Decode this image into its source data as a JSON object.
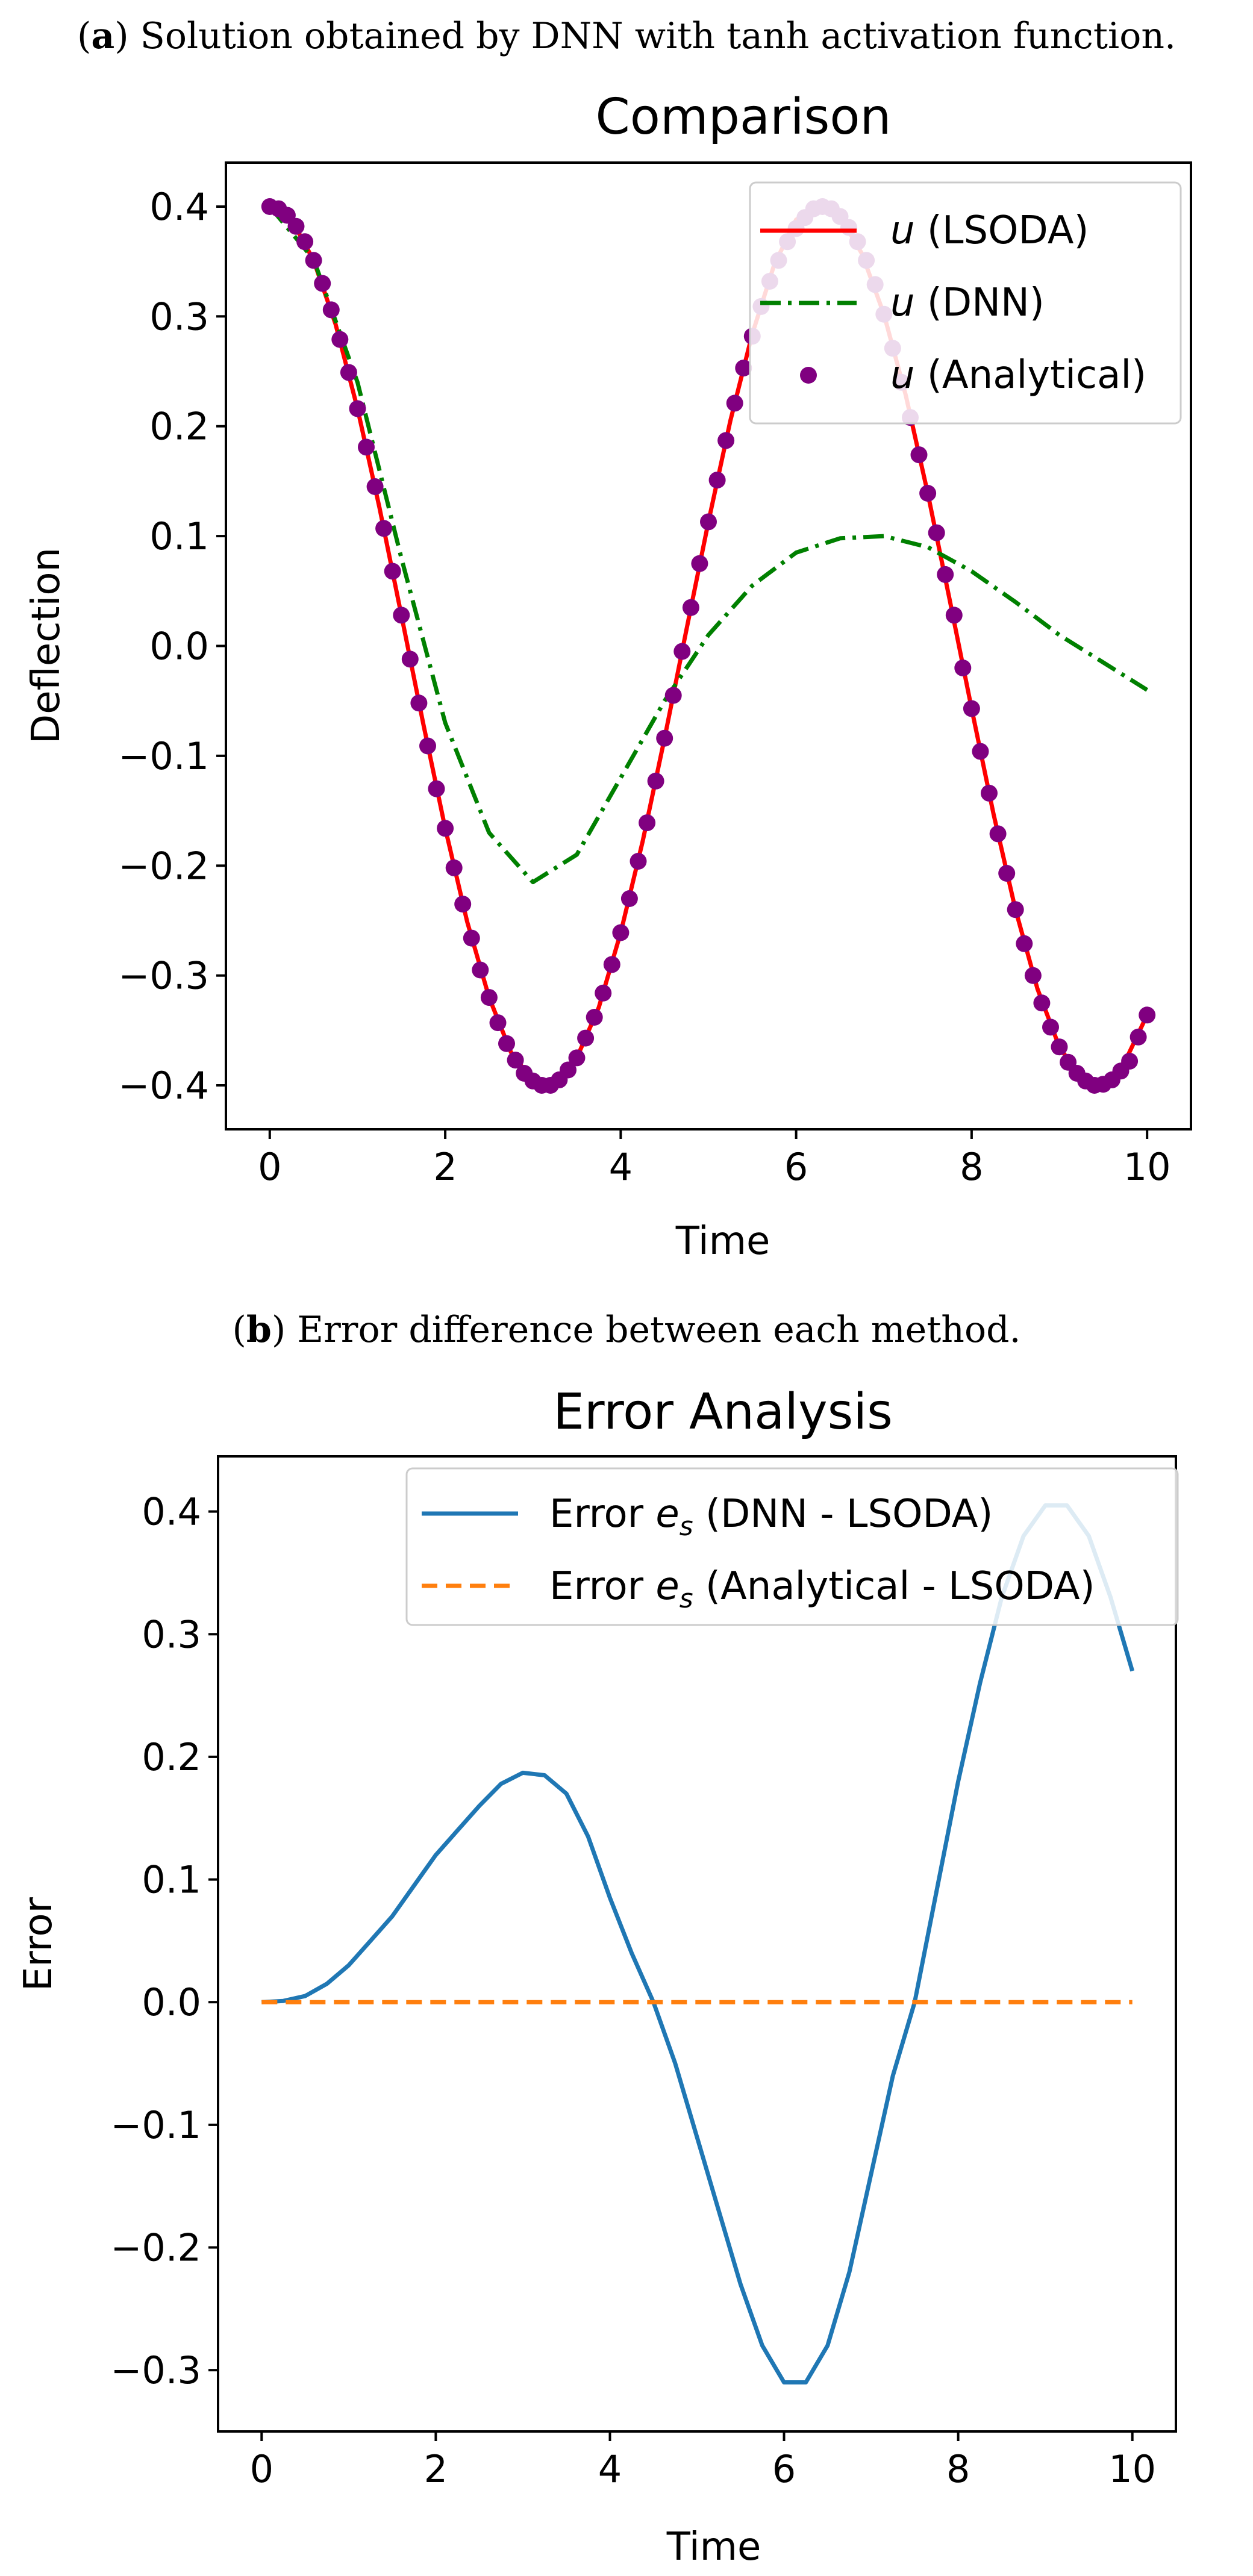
{
  "panels": [
    {
      "caption_label": "a",
      "caption_rest": ") Solution obtained by DNN with tanh activation function.",
      "chart_data": {
        "type": "line",
        "title": "Comparison",
        "xlabel": "Time",
        "ylabel": "Deflection",
        "xlim": [
          -0.5,
          10.5
        ],
        "ylim": [
          -0.44,
          0.44
        ],
        "xticks": [
          0,
          2,
          4,
          6,
          8,
          10
        ],
        "yticks": [
          -0.4,
          -0.3,
          -0.2,
          -0.1,
          0.0,
          0.1,
          0.2,
          0.3,
          0.4
        ],
        "ytick_labels": [
          "−0.4",
          "−0.3",
          "−0.2",
          "−0.1",
          "0.0",
          "0.1",
          "0.2",
          "0.3",
          "0.4"
        ],
        "legend_position": "upper-right",
        "grid": false,
        "series": [
          {
            "name": "u (LSODA)",
            "symbol": "u",
            "label_rest": " (LSODA)",
            "color": "#ff0000",
            "style": "solid",
            "x": [
              0,
              0.25,
              0.5,
              0.75,
              1,
              1.25,
              1.5,
              1.75,
              2,
              2.25,
              2.5,
              2.75,
              3,
              3.25,
              3.5,
              3.75,
              4,
              4.25,
              4.5,
              4.75,
              5,
              5.25,
              5.5,
              5.75,
              6,
              6.25,
              6.5,
              6.75,
              7,
              7.25,
              7.5,
              7.75,
              8,
              8.25,
              8.5,
              8.75,
              9,
              9.25,
              9.5,
              9.75,
              10
            ],
            "y": [
              0.4,
              0.388,
              0.351,
              0.293,
              0.216,
              0.126,
              0.028,
              -0.071,
              -0.166,
              -0.251,
              -0.32,
              -0.37,
              -0.396,
              -0.398,
              -0.375,
              -0.329,
              -0.261,
              -0.178,
              -0.084,
              0.015,
              0.113,
              0.205,
              0.284,
              0.347,
              0.388,
              0.4,
              0.391,
              0.357,
              0.302,
              0.228,
              0.139,
              0.042,
              -0.057,
              -0.153,
              -0.24,
              -0.312,
              -0.365,
              -0.394,
              -0.399,
              -0.378,
              -0.336
            ]
          },
          {
            "name": "u (DNN)",
            "symbol": "u",
            "label_rest": " (DNN)",
            "color": "#008000",
            "style": "dashdot",
            "x": [
              0,
              0.5,
              1,
              1.5,
              2,
              2.5,
              3,
              3.5,
              4,
              4.5,
              5,
              5.5,
              6,
              6.5,
              7,
              7.5,
              8,
              8.5,
              9,
              9.5,
              10
            ],
            "y": [
              0.4,
              0.352,
              0.24,
              0.08,
              -0.07,
              -0.17,
              -0.215,
              -0.19,
              -0.12,
              -0.05,
              0.01,
              0.055,
              0.085,
              0.098,
              0.1,
              0.09,
              0.068,
              0.04,
              0.01,
              -0.015,
              -0.04
            ]
          },
          {
            "name": "u (Analytical)",
            "symbol": "u",
            "label_rest": " (Analytical)",
            "color": "#800080",
            "style": "markers",
            "x": [
              0,
              0.1,
              0.2,
              0.3,
              0.4,
              0.5,
              0.6,
              0.7,
              0.8,
              0.9,
              1,
              1.1,
              1.2,
              1.3,
              1.4,
              1.5,
              1.6,
              1.7,
              1.8,
              1.9,
              2,
              2.1,
              2.2,
              2.3,
              2.4,
              2.5,
              2.6,
              2.7,
              2.8,
              2.9,
              3,
              3.1,
              3.2,
              3.3,
              3.4,
              3.5,
              3.6,
              3.7,
              3.8,
              3.9,
              4,
              4.1,
              4.2,
              4.3,
              4.4,
              4.5,
              4.6,
              4.7,
              4.8,
              4.9,
              5,
              5.1,
              5.2,
              5.3,
              5.4,
              5.5,
              5.6,
              5.7,
              5.8,
              5.9,
              6,
              6.1,
              6.2,
              6.3,
              6.4,
              6.5,
              6.6,
              6.7,
              6.8,
              6.9,
              7,
              7.1,
              7.2,
              7.3,
              7.4,
              7.5,
              7.6,
              7.7,
              7.8,
              7.9,
              8,
              8.1,
              8.2,
              8.3,
              8.4,
              8.5,
              8.6,
              8.7,
              8.8,
              8.9,
              9,
              9.1,
              9.2,
              9.3,
              9.4,
              9.5,
              9.6,
              9.7,
              9.8,
              9.9,
              10
            ],
            "y": [
              0.4,
              0.398,
              0.392,
              0.382,
              0.368,
              0.351,
              0.33,
              0.306,
              0.279,
              0.249,
              0.216,
              0.181,
              0.145,
              0.107,
              0.068,
              0.028,
              -0.012,
              -0.052,
              -0.091,
              -0.13,
              -0.166,
              -0.202,
              -0.235,
              -0.266,
              -0.295,
              -0.32,
              -0.343,
              -0.362,
              -0.377,
              -0.389,
              -0.396,
              -0.4,
              -0.4,
              -0.395,
              -0.386,
              -0.375,
              -0.357,
              -0.338,
              -0.316,
              -0.29,
              -0.261,
              -0.23,
              -0.196,
              -0.161,
              -0.123,
              -0.084,
              -0.045,
              -0.005,
              0.035,
              0.075,
              0.113,
              0.151,
              0.187,
              0.221,
              0.253,
              0.282,
              0.309,
              0.332,
              0.351,
              0.368,
              0.38,
              0.39,
              0.398,
              0.4,
              0.398,
              0.391,
              0.381,
              0.368,
              0.351,
              0.329,
              0.302,
              0.271,
              0.24,
              0.208,
              0.174,
              0.139,
              0.103,
              0.065,
              0.028,
              -0.02,
              -0.057,
              -0.096,
              -0.134,
              -0.171,
              -0.207,
              -0.24,
              -0.271,
              -0.3,
              -0.325,
              -0.347,
              -0.365,
              -0.379,
              -0.389,
              -0.396,
              -0.4,
              -0.399,
              -0.395,
              -0.387,
              -0.378,
              -0.356,
              -0.336
            ]
          }
        ]
      }
    },
    {
      "caption_label": "b",
      "caption_rest": ") Error difference between each method.",
      "chart_data": {
        "type": "line",
        "title": "Error Analysis",
        "xlabel": "Time",
        "ylabel": "Error",
        "xlim": [
          -0.5,
          10.5
        ],
        "ylim": [
          -0.35,
          0.445
        ],
        "xticks": [
          0,
          2,
          4,
          6,
          8,
          10
        ],
        "yticks": [
          -0.3,
          -0.2,
          -0.1,
          0.0,
          0.1,
          0.2,
          0.3,
          0.4
        ],
        "ytick_labels": [
          "−0.3",
          "−0.2",
          "−0.1",
          "0.0",
          "0.1",
          "0.2",
          "0.3",
          "0.4"
        ],
        "legend_position": "upper-right",
        "grid": false,
        "series": [
          {
            "name": "Error e_s (DNN - LSODA)",
            "label_pre": "Error ",
            "symbol": "e",
            "subscript": "s",
            "label_rest": " (DNN - LSODA)",
            "color": "#1f77b4",
            "style": "solid",
            "x": [
              0,
              0.25,
              0.5,
              0.75,
              1,
              1.25,
              1.5,
              1.75,
              2,
              2.25,
              2.5,
              2.75,
              3,
              3.25,
              3.5,
              3.75,
              4,
              4.25,
              4.5,
              4.75,
              5,
              5.25,
              5.5,
              5.75,
              6,
              6.25,
              6.5,
              6.75,
              7,
              7.25,
              7.5,
              7.75,
              8,
              8.25,
              8.5,
              8.75,
              9,
              9.25,
              9.5,
              9.75,
              10
            ],
            "y": [
              0.0,
              0.001,
              0.005,
              0.015,
              0.03,
              0.05,
              0.07,
              0.095,
              0.12,
              0.14,
              0.16,
              0.178,
              0.187,
              0.185,
              0.17,
              0.135,
              0.085,
              0.04,
              0.0,
              -0.05,
              -0.11,
              -0.17,
              -0.23,
              -0.28,
              -0.31,
              -0.31,
              -0.28,
              -0.22,
              -0.14,
              -0.06,
              0.0,
              0.09,
              0.18,
              0.26,
              0.33,
              0.38,
              0.405,
              0.405,
              0.38,
              0.33,
              0.27
            ]
          },
          {
            "name": "Error e_s (Analytical - LSODA)",
            "label_pre": "Error ",
            "symbol": "e",
            "subscript": "s",
            "label_rest": " (Analytical - LSODA)",
            "color": "#ff7f0e",
            "style": "dashed",
            "x": [
              0,
              10
            ],
            "y": [
              0.0,
              0.0
            ]
          }
        ]
      }
    }
  ]
}
